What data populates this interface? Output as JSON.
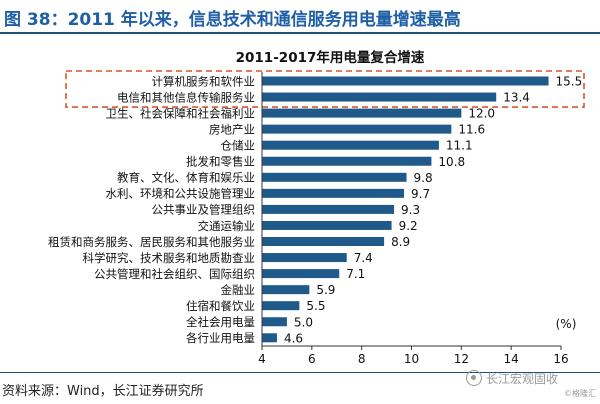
{
  "figure": {
    "title": "图 38：2011 年以来，信息技术和通信服务用电量增速最高",
    "source": "资料来源：Wind，长江证券研究所",
    "watermark": "长江宏观固收",
    "corner_mark": "©格隆汇"
  },
  "colors": {
    "bar": "#1f5a8a",
    "title": "#1f5fa6",
    "highlight_box": "#d9562b",
    "rule": "#1f4e79"
  },
  "chart_data": {
    "type": "bar",
    "orientation": "horizontal",
    "title": "2011-2017年用电量复合增速",
    "unit_label": "(%)",
    "categories": [
      "计算机服务和软件业",
      "电信和其他信息传输服务业",
      "卫生、社会保障和社会福利业",
      "房地产业",
      "仓储业",
      "批发和零售业",
      "教育、文化、体育和娱乐业",
      "水利、环境和公共设施管理业",
      "公共事业及管理组织",
      "交通运输业",
      "租赁和商务服务、居民服务和其他服务业",
      "科学研究、技术服务和地质勘查业",
      "公共管理和社会组织、国际组织",
      "金融业",
      "住宿和餐饮业",
      "全社会用电量",
      "各行业用电量"
    ],
    "values": [
      15.5,
      13.4,
      12.0,
      11.6,
      11.1,
      10.8,
      9.8,
      9.7,
      9.3,
      9.2,
      8.9,
      7.4,
      7.1,
      5.9,
      5.5,
      5.0,
      4.6
    ],
    "value_labels": [
      "15.5",
      "13.4",
      "12.0",
      "11.6",
      "11.1",
      "10.8",
      "9.8",
      "9.7",
      "9.3",
      "9.2",
      "8.9",
      "7.4",
      "7.1",
      "5.9",
      "5.5",
      "5.0",
      "4.6"
    ],
    "xlim": [
      4,
      16
    ],
    "xticks": [
      "4",
      "6",
      "8",
      "10",
      "12",
      "14",
      "16"
    ],
    "highlighted_categories": [
      0,
      1
    ],
    "grid": false,
    "legend": "none"
  }
}
